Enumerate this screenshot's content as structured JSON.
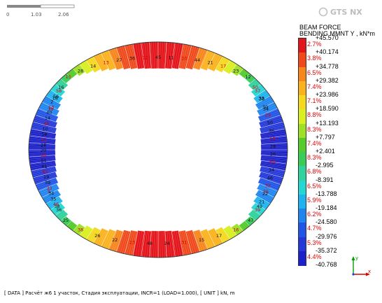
{
  "scale": {
    "ticks": [
      "0",
      "1.03",
      "2.06"
    ]
  },
  "logo": {
    "text": "GTS NX",
    "tag": "midas"
  },
  "legend": {
    "title_line1": "BEAM FORCE",
    "title_line2": "BENDING MMNT Y , kN*m",
    "values": [
      "+45.570",
      "+40.174",
      "+34.778",
      "+29.382",
      "+23.986",
      "+18.590",
      "+13.193",
      "+7.797",
      "+2.401",
      "-2.995",
      "-8.391",
      "-13.788",
      "-19.184",
      "-24.580",
      "-29.976",
      "-35.372",
      "-40.768"
    ],
    "percents": [
      "2.7%",
      "3.8%",
      "6.5%",
      "7.4%",
      "7.1%",
      "8.8%",
      "8.3%",
      "7.4%",
      "8.3%",
      "6.8%",
      "6.5%",
      "5.9%",
      "6.2%",
      "4.7%",
      "5.3%",
      "4.4%"
    ],
    "colors": [
      "#e4141b",
      "#f04a1c",
      "#f7861d",
      "#fbb21f",
      "#f5d820",
      "#d9ef22",
      "#9fe027",
      "#55cc2c",
      "#3bcc57",
      "#31d29d",
      "#26d6d2",
      "#1fb4ef",
      "#1f86f0",
      "#2055e8",
      "#2438d9",
      "#1c21c9"
    ]
  },
  "axis": {
    "x_label": "x",
    "y_label": "y",
    "x_color": "#e00000",
    "y_color": "#00a000"
  },
  "status": {
    "text": "[ DATA ] Расчёт ж6 1 участок, Стадия эксплуатации, INCR=1 (LOAD=1.000), [ UNIT ]  kN, m"
  },
  "node_labels": {
    "top": [
      "19",
      "18",
      "16",
      "15",
      "28",
      "14",
      "13",
      "27",
      "36",
      "12",
      "45",
      "11",
      "10",
      "44",
      "21",
      "17",
      "23",
      "12",
      "50",
      "33",
      "34"
    ],
    "bottom": [
      "5",
      "38",
      "25",
      "38",
      "26",
      "22",
      "23",
      "48",
      "24",
      "31",
      "15",
      "17",
      "16",
      "47",
      "49",
      "35"
    ],
    "left": [
      "58",
      "56",
      "2",
      "13",
      "40",
      "14",
      "49",
      "10",
      "58",
      "31",
      "28",
      "29",
      "26",
      "51",
      "61",
      "62",
      "19",
      "39",
      "33",
      "34",
      "35",
      "46",
      "36"
    ],
    "right": [
      "37",
      "38",
      "30",
      "29",
      "50",
      "36",
      "19",
      "28",
      "26",
      "60",
      "34",
      "46",
      "32",
      "22",
      "21",
      "39"
    ]
  }
}
